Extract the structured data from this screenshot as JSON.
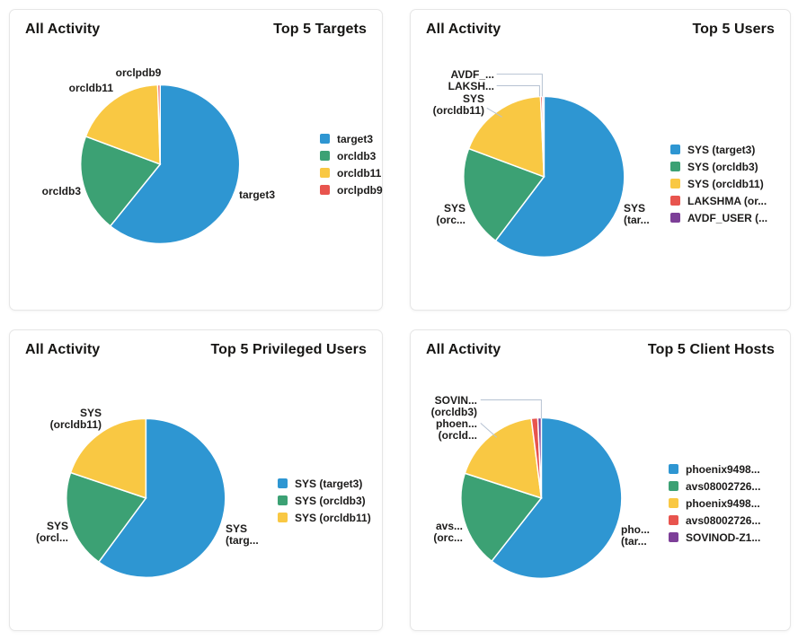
{
  "palette": {
    "blue": "#2e96d2",
    "green": "#3ca174",
    "yellow": "#f9c843",
    "red": "#e8544e",
    "purple": "#7d3f98",
    "leader_line": "#b6c2d2",
    "text": "#1c1b1a",
    "heading_text": "#161513",
    "card_border": "#e6e6e6",
    "background": "#ffffff"
  },
  "chart_data": [
    {
      "type": "pie",
      "context_label": "All Activity",
      "title": "Top 5 Targets",
      "legend_position": "right",
      "slices": [
        {
          "legend_label": "target3",
          "callout_lines": [
            "target3"
          ],
          "percent": 60.8,
          "color": "#2e96d2"
        },
        {
          "legend_label": "orcldb3",
          "callout_lines": [
            "orcldb3"
          ],
          "percent": 19.9,
          "color": "#3ca174"
        },
        {
          "legend_label": "orcldb11",
          "callout_lines": [
            "orcldb11"
          ],
          "percent": 18.8,
          "color": "#f9c843"
        },
        {
          "legend_label": "orclpdb9",
          "callout_lines": [
            "orclpdb9"
          ],
          "percent": 0.5,
          "color": "#e8544e"
        }
      ]
    },
    {
      "type": "pie",
      "context_label": "All Activity",
      "title": "Top 5 Users",
      "legend_position": "right",
      "slices": [
        {
          "legend_label": "SYS (target3)",
          "callout_lines": [
            "SYS",
            "(tar..."
          ],
          "percent": 60.3,
          "color": "#2e96d2"
        },
        {
          "legend_label": "SYS (orcldb3)",
          "callout_lines": [
            "SYS",
            "(orc..."
          ],
          "percent": 20.4,
          "color": "#3ca174"
        },
        {
          "legend_label": "SYS (orcldb11)",
          "callout_lines": [
            "SYS",
            "(orcldb11)"
          ],
          "percent": 18.6,
          "color": "#f9c843"
        },
        {
          "legend_label": "LAKSHMA (or...",
          "callout_lines": [
            "LAKSH..."
          ],
          "percent": 0.4,
          "color": "#e8544e"
        },
        {
          "legend_label": "AVDF_USER (...",
          "callout_lines": [
            "AVDF_..."
          ],
          "percent": 0.3,
          "color": "#7d3f98"
        }
      ]
    },
    {
      "type": "pie",
      "context_label": "All Activity",
      "title": "Top 5 Privileged Users",
      "legend_position": "right",
      "slices": [
        {
          "legend_label": "SYS (target3)",
          "callout_lines": [
            "SYS",
            "(targ..."
          ],
          "percent": 60.1,
          "color": "#2e96d2"
        },
        {
          "legend_label": "SYS (orcldb3)",
          "callout_lines": [
            "SYS",
            "(orcl..."
          ],
          "percent": 20.1,
          "color": "#3ca174"
        },
        {
          "legend_label": "SYS (orcldb11)",
          "callout_lines": [
            "SYS",
            "(orcldb11)"
          ],
          "percent": 19.8,
          "color": "#f9c843"
        }
      ]
    },
    {
      "type": "pie",
      "context_label": "All Activity",
      "title": "Top 5 Client Hosts",
      "legend_position": "right",
      "slices": [
        {
          "legend_label": "phoenix9498...",
          "callout_lines": [
            "pho...",
            "(tar..."
          ],
          "percent": 60.6,
          "color": "#2e96d2"
        },
        {
          "legend_label": "avs08002726...",
          "callout_lines": [
            "avs...",
            "(orc..."
          ],
          "percent": 19.4,
          "color": "#3ca174"
        },
        {
          "legend_label": "phoenix9498...",
          "callout_lines": [
            "phoen...",
            "(orcld..."
          ],
          "percent": 18.0,
          "color": "#f9c843"
        },
        {
          "legend_label": "avs08002726...",
          "callout_lines": null,
          "percent": 1.3,
          "color": "#e8544e"
        },
        {
          "legend_label": "SOVINOD-Z1...",
          "callout_lines": [
            "SOVIN...",
            "(orcldb3)"
          ],
          "percent": 0.7,
          "color": "#7d3f98"
        }
      ]
    }
  ]
}
